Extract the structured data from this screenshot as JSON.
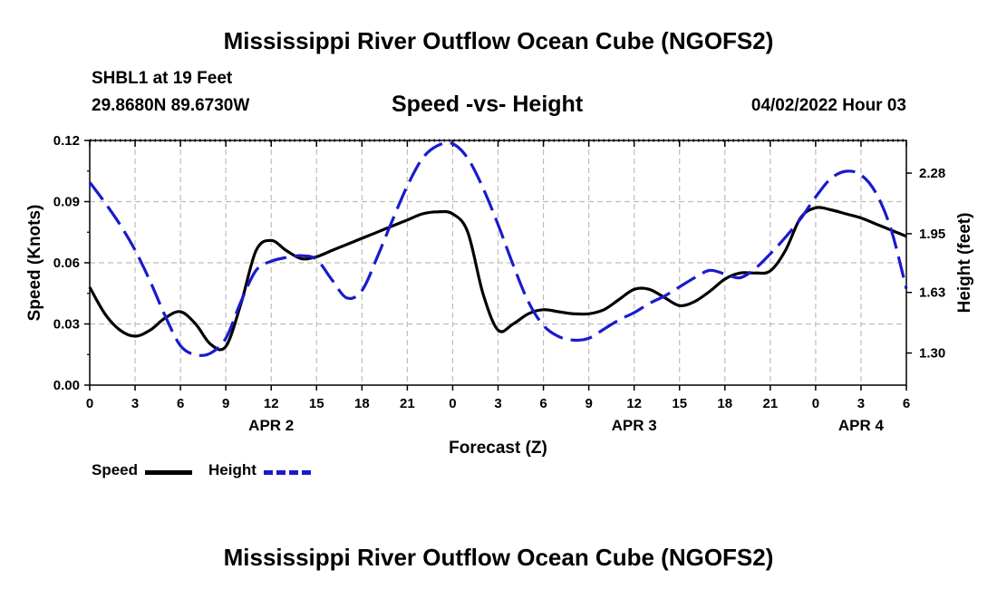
{
  "header": {
    "title": "Mississippi River Outflow Ocean Cube (NGOFS2)",
    "station": "SHBL1 at 19 Feet",
    "coords": "29.8680N  89.6730W",
    "subtitle": "Speed -vs- Height",
    "datetime": "04/02/2022 Hour 03"
  },
  "footer": {
    "title": "Mississippi River Outflow Ocean Cube (NGOFS2)"
  },
  "legend": {
    "speed_label": "Speed",
    "height_label": "Height",
    "speed_color": "#000000",
    "height_color": "#1a1acc"
  },
  "chart_data": {
    "type": "line",
    "title": "Speed -vs- Height",
    "xlabel": "Forecast (Z)",
    "ylabel": "Speed (Knots)",
    "y2label": "Height (feet)",
    "xlim": [
      0,
      54
    ],
    "ylim": [
      0,
      0.12
    ],
    "y2lim": [
      1.125,
      2.458
    ],
    "x_ticks": [
      0,
      3,
      6,
      9,
      12,
      15,
      18,
      21,
      24,
      27,
      30,
      33,
      36,
      39,
      42,
      45,
      48,
      51,
      54
    ],
    "x_tick_labels": [
      "0",
      "3",
      "6",
      "9",
      "12",
      "15",
      "18",
      "21",
      "0",
      "3",
      "6",
      "9",
      "12",
      "15",
      "18",
      "21",
      "0",
      "3",
      "6"
    ],
    "y_ticks": [
      0,
      0.03,
      0.06,
      0.09,
      0.12
    ],
    "y_tick_labels": [
      "0.00",
      "0.03",
      "0.06",
      "0.09",
      "0.12"
    ],
    "y2_ticks": [
      1.3,
      1.63,
      1.95,
      2.28
    ],
    "y2_tick_labels": [
      "1.30",
      "1.63",
      "1.95",
      "2.28"
    ],
    "date_labels": [
      {
        "x": 12,
        "label": "APR 2"
      },
      {
        "x": 36,
        "label": "APR 3"
      },
      {
        "x": 51,
        "label": "APR 4"
      }
    ],
    "grid": true,
    "legend_position": "bottom-left",
    "series": [
      {
        "name": "Speed",
        "axis": "left",
        "units": "Knots",
        "color": "#000000",
        "style": "solid",
        "x": [
          0,
          1,
          2,
          3,
          4,
          5,
          6,
          7,
          8,
          9,
          10,
          11,
          12,
          13,
          14,
          15,
          16,
          17,
          18,
          19,
          20,
          21,
          22,
          23,
          24,
          25,
          26,
          27,
          28,
          29,
          30,
          31,
          32,
          33,
          34,
          35,
          36,
          37,
          38,
          39,
          40,
          41,
          42,
          43,
          44,
          45,
          46,
          47,
          48,
          49,
          50,
          51,
          52,
          53,
          54
        ],
        "values": [
          0.048,
          0.035,
          0.027,
          0.024,
          0.027,
          0.033,
          0.036,
          0.03,
          0.02,
          0.019,
          0.04,
          0.066,
          0.071,
          0.066,
          0.062,
          0.063,
          0.066,
          0.069,
          0.072,
          0.075,
          0.078,
          0.081,
          0.084,
          0.085,
          0.084,
          0.075,
          0.045,
          0.027,
          0.03,
          0.035,
          0.037,
          0.036,
          0.035,
          0.035,
          0.037,
          0.042,
          0.047,
          0.047,
          0.043,
          0.039,
          0.041,
          0.046,
          0.052,
          0.055,
          0.055,
          0.056,
          0.066,
          0.082,
          0.087,
          0.086,
          0.084,
          0.082,
          0.079,
          0.076,
          0.073
        ]
      },
      {
        "name": "Height",
        "axis": "right",
        "units": "feet",
        "color": "#1a1acc",
        "style": "dashed",
        "x": [
          0,
          1,
          2,
          3,
          4,
          5,
          6,
          7,
          8,
          9,
          10,
          11,
          12,
          13,
          14,
          15,
          16,
          17,
          18,
          19,
          20,
          21,
          22,
          23,
          24,
          25,
          26,
          27,
          28,
          29,
          30,
          31,
          32,
          33,
          34,
          35,
          36,
          37,
          38,
          39,
          40,
          41,
          42,
          43,
          44,
          45,
          46,
          47,
          48,
          49,
          50,
          51,
          52,
          53,
          54
        ],
        "values": [
          2.23,
          2.12,
          2.0,
          1.86,
          1.69,
          1.5,
          1.34,
          1.29,
          1.3,
          1.38,
          1.58,
          1.75,
          1.8,
          1.82,
          1.83,
          1.81,
          1.7,
          1.6,
          1.64,
          1.82,
          2.02,
          2.21,
          2.36,
          2.43,
          2.44,
          2.36,
          2.2,
          2.0,
          1.78,
          1.58,
          1.45,
          1.39,
          1.37,
          1.38,
          1.43,
          1.48,
          1.52,
          1.57,
          1.61,
          1.66,
          1.71,
          1.75,
          1.73,
          1.71,
          1.76,
          1.84,
          1.93,
          2.03,
          2.15,
          2.25,
          2.29,
          2.27,
          2.17,
          1.97,
          1.65
        ]
      }
    ]
  }
}
